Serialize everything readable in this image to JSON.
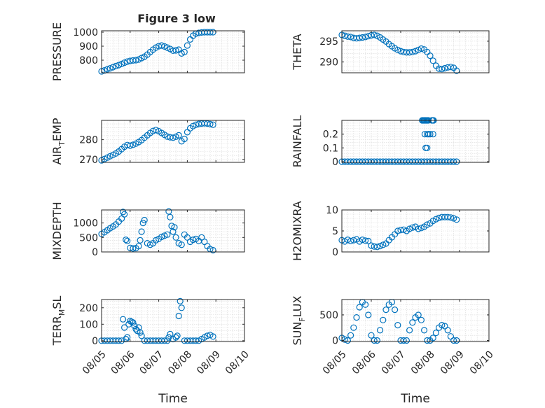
{
  "title": "Figure 3 low",
  "marker_color": "#0072bd",
  "chart_data": [
    {
      "type": "scatter",
      "ylabel": "PRESSURE",
      "xlabel": "",
      "xlim": [
        "08/05",
        "08/10"
      ],
      "ylim": [
        710,
        1010
      ],
      "yticks": [
        "800",
        "900",
        "1000"
      ],
      "ytick_values": [
        800,
        900,
        1000
      ],
      "xticks": [],
      "grid": true,
      "x": [
        5.0,
        5.1,
        5.2,
        5.3,
        5.4,
        5.5,
        5.6,
        5.7,
        5.8,
        5.9,
        6.0,
        6.1,
        6.2,
        6.3,
        6.4,
        6.5,
        6.6,
        6.7,
        6.8,
        6.9,
        7.0,
        7.1,
        7.2,
        7.3,
        7.4,
        7.5,
        7.6,
        7.7,
        7.8,
        7.9,
        8.0,
        8.1,
        8.2,
        8.3,
        8.4,
        8.5,
        8.6,
        8.7,
        8.8,
        8.9
      ],
      "y": [
        720,
        727,
        735,
        742,
        750,
        758,
        765,
        773,
        782,
        790,
        795,
        798,
        800,
        805,
        815,
        825,
        840,
        858,
        875,
        890,
        900,
        905,
        898,
        890,
        880,
        868,
        870,
        875,
        848,
        858,
        905,
        948,
        975,
        990,
        995,
        998,
        1000,
        1000,
        1000,
        1000
      ]
    },
    {
      "type": "scatter",
      "ylabel": "THETA",
      "xlabel": "",
      "xlim": [
        "08/05",
        "08/10"
      ],
      "ylim": [
        287.4,
        297.5
      ],
      "yticks": [
        "290",
        "295"
      ],
      "ytick_values": [
        290,
        295
      ],
      "xticks": [],
      "grid": true,
      "x": [
        5.0,
        5.1,
        5.2,
        5.3,
        5.4,
        5.5,
        5.6,
        5.7,
        5.8,
        5.9,
        6.0,
        6.1,
        6.2,
        6.3,
        6.4,
        6.5,
        6.6,
        6.7,
        6.8,
        6.9,
        7.0,
        7.1,
        7.2,
        7.3,
        7.4,
        7.5,
        7.6,
        7.7,
        7.8,
        7.9,
        8.0,
        8.1,
        8.2,
        8.3,
        8.4,
        8.5,
        8.6,
        8.7,
        8.8,
        8.9
      ],
      "y": [
        296.5,
        296.3,
        296.1,
        296.0,
        295.8,
        295.7,
        295.8,
        295.9,
        296.0,
        296.2,
        296.4,
        296.5,
        296.3,
        295.9,
        295.4,
        294.9,
        294.3,
        293.8,
        293.3,
        292.9,
        292.6,
        292.4,
        292.3,
        292.3,
        292.4,
        292.6,
        292.9,
        293.2,
        293.0,
        292.4,
        291.5,
        290.3,
        289.1,
        288.4,
        288.3,
        288.5,
        288.7,
        288.8,
        288.6,
        287.9
      ]
    },
    {
      "type": "scatter",
      "ylabel": "AIR_TEMP",
      "xlabel": "",
      "xlim": [
        "08/05",
        "08/10"
      ],
      "ylim": [
        268.5,
        289.8
      ],
      "yticks": [
        "270",
        "280"
      ],
      "ytick_values": [
        270,
        280
      ],
      "xticks": [],
      "grid": true,
      "x": [
        5.0,
        5.1,
        5.2,
        5.3,
        5.4,
        5.5,
        5.6,
        5.7,
        5.8,
        5.9,
        6.0,
        6.1,
        6.2,
        6.3,
        6.4,
        6.5,
        6.6,
        6.7,
        6.8,
        6.9,
        7.0,
        7.1,
        7.2,
        7.3,
        7.4,
        7.5,
        7.6,
        7.7,
        7.8,
        7.9,
        8.0,
        8.1,
        8.2,
        8.3,
        8.4,
        8.5,
        8.6,
        8.7,
        8.8,
        8.9
      ],
      "y": [
        269.5,
        270.2,
        270.9,
        271.6,
        272.3,
        273.0,
        274.0,
        275.2,
        276.4,
        277.3,
        277.0,
        277.4,
        278.0,
        278.8,
        279.8,
        281.0,
        282.2,
        283.4,
        284.4,
        284.9,
        284.3,
        283.4,
        282.5,
        281.6,
        281.2,
        281.0,
        281.5,
        282.2,
        279.2,
        280.4,
        283.8,
        285.8,
        286.9,
        287.6,
        288.0,
        288.2,
        288.3,
        288.2,
        287.9,
        287.6
      ]
    },
    {
      "type": "scatter",
      "ylabel": "RAINFALL",
      "xlabel": "",
      "xlim": [
        "08/05",
        "08/10"
      ],
      "ylim": [
        -0.005,
        0.3
      ],
      "yticks": [
        "0",
        "0.1",
        "0.2"
      ],
      "ytick_values": [
        0,
        0.1,
        0.2
      ],
      "xticks": [],
      "grid": true,
      "x": [
        5.0,
        5.1,
        5.2,
        5.3,
        5.4,
        5.5,
        5.6,
        5.7,
        5.8,
        5.9,
        6.0,
        6.1,
        6.2,
        6.3,
        6.4,
        6.5,
        6.6,
        6.7,
        6.8,
        6.9,
        7.0,
        7.1,
        7.2,
        7.3,
        7.4,
        7.5,
        7.6,
        7.7,
        7.8,
        7.9,
        8.0,
        8.1,
        8.2,
        8.3,
        8.4,
        8.5,
        8.6,
        8.7,
        8.8,
        8.9,
        7.73,
        7.76,
        7.79,
        7.82,
        7.85,
        7.88,
        7.91,
        7.94,
        8.06,
        8.09,
        8.12,
        7.9,
        7.94,
        8.0,
        8.1,
        7.82,
        7.85,
        7.9
      ],
      "y": [
        0,
        0,
        0,
        0,
        0,
        0,
        0,
        0,
        0,
        0,
        0,
        0,
        0,
        0,
        0,
        0,
        0,
        0,
        0,
        0,
        0,
        0,
        0,
        0,
        0,
        0,
        0,
        0,
        0,
        0,
        0,
        0,
        0,
        0,
        0,
        0,
        0,
        0,
        0,
        0,
        0.3,
        0.3,
        0.3,
        0.3,
        0.3,
        0.3,
        0.3,
        0.3,
        0.3,
        0.3,
        0.3,
        0.2,
        0.2,
        0.2,
        0.2,
        0.2,
        0.1,
        0.1
      ]
    },
    {
      "type": "scatter",
      "ylabel": "MIXDEPTH",
      "xlabel": "",
      "xlim": [
        "08/05",
        "08/10"
      ],
      "ylim": [
        0,
        1450
      ],
      "yticks": [
        "0",
        "500",
        "1000"
      ],
      "ytick_values": [
        0,
        500,
        1000
      ],
      "xticks": [],
      "grid": true,
      "x": [
        5.0,
        5.1,
        5.2,
        5.3,
        5.4,
        5.5,
        5.6,
        5.7,
        5.75,
        5.8,
        5.85,
        5.9,
        6.0,
        6.1,
        6.2,
        6.3,
        6.35,
        6.4,
        6.45,
        6.5,
        6.6,
        6.7,
        6.8,
        6.9,
        7.0,
        7.1,
        7.2,
        7.3,
        7.35,
        7.4,
        7.45,
        7.5,
        7.55,
        7.6,
        7.7,
        7.8,
        7.9,
        8.0,
        8.1,
        8.2,
        8.3,
        8.4,
        8.5,
        8.6,
        8.7,
        8.8,
        8.9
      ],
      "y": [
        620,
        680,
        750,
        820,
        880,
        950,
        1050,
        1150,
        1380,
        1300,
        420,
        380,
        140,
        120,
        130,
        200,
        400,
        700,
        1000,
        1100,
        300,
        250,
        300,
        400,
        450,
        520,
        560,
        600,
        1400,
        1200,
        900,
        700,
        850,
        500,
        300,
        250,
        600,
        500,
        350,
        420,
        450,
        380,
        500,
        350,
        200,
        100,
        60
      ]
    },
    {
      "type": "scatter",
      "ylabel": "H2OMIXRA",
      "xlabel": "",
      "xlim": [
        "08/05",
        "08/10"
      ],
      "ylim": [
        0,
        10
      ],
      "yticks": [
        "0",
        "5",
        "10"
      ],
      "ytick_values": [
        0,
        5,
        10
      ],
      "xticks": [],
      "grid": true,
      "x": [
        5.0,
        5.1,
        5.2,
        5.3,
        5.4,
        5.5,
        5.6,
        5.7,
        5.8,
        5.9,
        6.0,
        6.1,
        6.2,
        6.3,
        6.4,
        6.5,
        6.6,
        6.7,
        6.8,
        6.9,
        7.0,
        7.1,
        7.2,
        7.3,
        7.4,
        7.5,
        7.6,
        7.7,
        7.8,
        7.9,
        8.0,
        8.1,
        8.2,
        8.3,
        8.4,
        8.5,
        8.6,
        8.7,
        8.8,
        8.9
      ],
      "y": [
        2.8,
        2.5,
        2.9,
        2.6,
        2.8,
        3.0,
        2.5,
        2.9,
        2.7,
        2.6,
        1.5,
        1.3,
        1.2,
        1.4,
        1.7,
        2.0,
        2.8,
        3.5,
        4.2,
        5.0,
        5.2,
        5.3,
        5.0,
        5.5,
        5.8,
        6.0,
        5.5,
        5.7,
        6.0,
        6.5,
        6.8,
        7.4,
        7.8,
        8.1,
        8.3,
        8.3,
        8.3,
        8.2,
        8.0,
        7.7
      ]
    },
    {
      "type": "scatter",
      "ylabel": "TERR_MSL",
      "xlabel": "Time",
      "xlim": [
        "08/05",
        "08/10"
      ],
      "ylim": [
        -5,
        250
      ],
      "yticks": [
        "0",
        "100",
        "200"
      ],
      "ytick_values": [
        0,
        100,
        200
      ],
      "xticks": [
        "08/05",
        "08/06",
        "08/07",
        "08/08",
        "08/09",
        "08/10"
      ],
      "xtick_values": [
        5,
        6,
        7,
        8,
        9,
        10
      ],
      "grid": true,
      "x": [
        5.0,
        5.1,
        5.2,
        5.3,
        5.4,
        5.5,
        5.6,
        5.7,
        5.75,
        5.8,
        5.85,
        5.9,
        5.95,
        6.0,
        6.05,
        6.1,
        6.15,
        6.2,
        6.25,
        6.3,
        6.35,
        6.4,
        6.5,
        6.6,
        6.7,
        6.8,
        6.9,
        7.0,
        7.1,
        7.2,
        7.3,
        7.35,
        7.4,
        7.5,
        7.6,
        7.65,
        7.7,
        7.75,
        7.8,
        7.9,
        8.0,
        8.1,
        8.2,
        8.3,
        8.4,
        8.5,
        8.6,
        8.7,
        8.8,
        8.9
      ],
      "y": [
        0,
        0,
        0,
        0,
        0,
        0,
        0,
        0,
        130,
        80,
        10,
        20,
        100,
        120,
        115,
        110,
        90,
        70,
        60,
        80,
        50,
        30,
        0,
        0,
        0,
        0,
        0,
        0,
        0,
        0,
        0,
        20,
        40,
        10,
        20,
        30,
        150,
        240,
        200,
        0,
        0,
        0,
        0,
        0,
        0,
        10,
        20,
        30,
        35,
        25
      ]
    },
    {
      "type": "scatter",
      "ylabel": "SUN_FLUX",
      "xlabel": "Time",
      "xlim": [
        "08/05",
        "08/10"
      ],
      "ylim": [
        -20,
        800
      ],
      "yticks": [
        "0",
        "500"
      ],
      "ytick_values": [
        0,
        500
      ],
      "xticks": [
        "08/05",
        "08/06",
        "08/07",
        "08/08",
        "08/09",
        "08/10"
      ],
      "xtick_values": [
        5,
        6,
        7,
        8,
        9,
        10
      ],
      "grid": true,
      "x": [
        5.0,
        5.1,
        5.2,
        5.3,
        5.4,
        5.5,
        5.6,
        5.7,
        5.8,
        5.9,
        6.0,
        6.1,
        6.2,
        6.3,
        6.4,
        6.5,
        6.6,
        6.7,
        6.8,
        6.9,
        7.0,
        7.1,
        7.2,
        7.3,
        7.4,
        7.5,
        7.6,
        7.7,
        7.8,
        7.9,
        8.0,
        8.1,
        8.2,
        8.3,
        8.4,
        8.5,
        8.6,
        8.7,
        8.8,
        8.9
      ],
      "y": [
        50,
        20,
        0,
        100,
        250,
        450,
        650,
        750,
        700,
        500,
        100,
        0,
        0,
        200,
        400,
        600,
        700,
        750,
        600,
        300,
        0,
        0,
        0,
        200,
        350,
        450,
        500,
        400,
        200,
        0,
        0,
        50,
        150,
        250,
        300,
        280,
        200,
        80,
        0,
        0
      ]
    }
  ]
}
